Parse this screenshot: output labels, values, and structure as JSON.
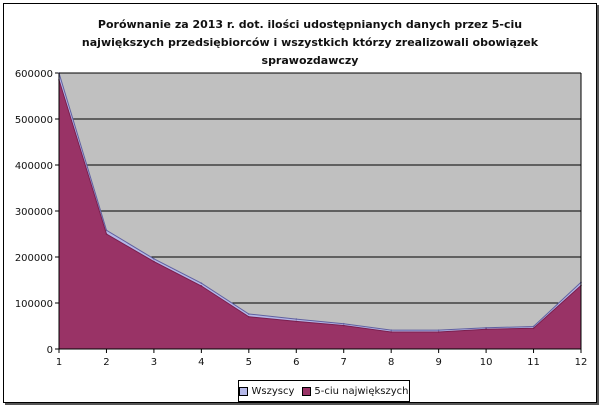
{
  "chart_data": {
    "type": "area",
    "title": "Porównanie za 2013 r. dot. ilości udostępnianych danych przez 5-ciu największych przedsiębiorców i wszystkich którzy zrealizowali obowiązek sprawozdawczy",
    "x": [
      1,
      2,
      3,
      4,
      5,
      6,
      7,
      8,
      9,
      10,
      11,
      12
    ],
    "series": [
      {
        "name": "Wszyscy",
        "color": "#b5b8e8",
        "values": [
          600000,
          258000,
          196000,
          143000,
          76000,
          65000,
          55000,
          41000,
          41000,
          46000,
          49000,
          145000
        ]
      },
      {
        "name": "5-ciu największych",
        "color": "#993366",
        "values": [
          585000,
          250000,
          190000,
          137000,
          70000,
          60000,
          51000,
          37000,
          37000,
          43000,
          45000,
          138000
        ]
      }
    ],
    "ylim": [
      0,
      600000
    ],
    "yticks": [
      0,
      100000,
      200000,
      300000,
      400000,
      500000,
      600000
    ],
    "ytick_labels": [
      "0",
      "100000",
      "200000",
      "300000",
      "400000",
      "500000",
      "600000"
    ],
    "xtick_labels": [
      "1",
      "2",
      "3",
      "4",
      "5",
      "6",
      "7",
      "8",
      "9",
      "10",
      "11",
      "12"
    ],
    "grid": true,
    "plot_background": "#c0c0c0",
    "legend_position": "bottom"
  }
}
